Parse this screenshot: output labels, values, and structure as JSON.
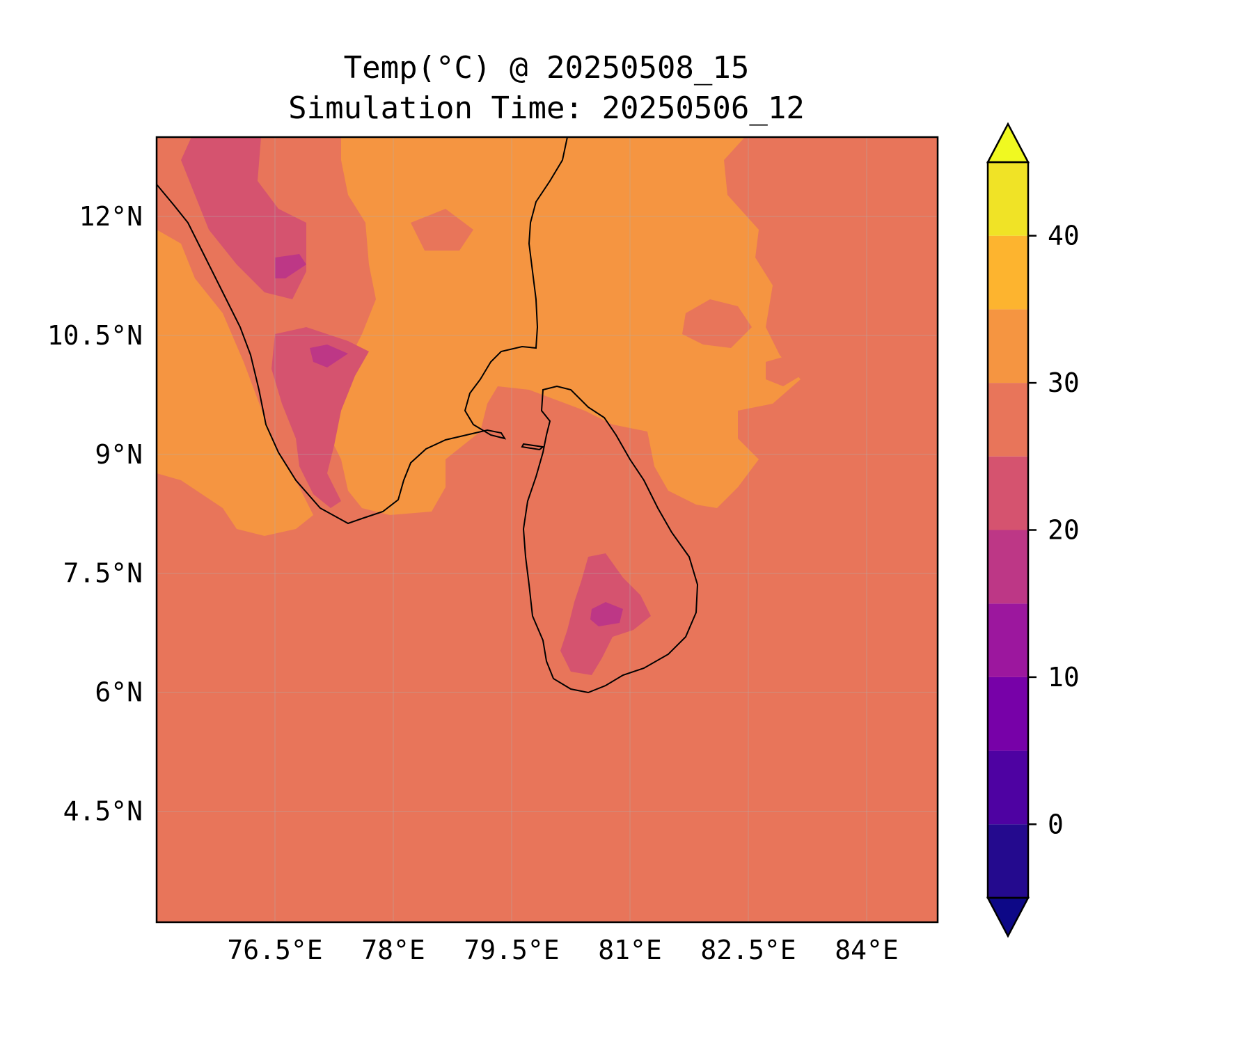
{
  "title": {
    "line1": "Temp(°C) @ 20250508_15",
    "line2": "Simulation Time: 20250506_12"
  },
  "map": {
    "lon_range": [
      75.0,
      84.9
    ],
    "lat_range": [
      3.1,
      13.0
    ],
    "lon_ticks": [
      {
        "value": 76.5,
        "label": "76.5°E"
      },
      {
        "value": 78.0,
        "label": "78°E"
      },
      {
        "value": 79.5,
        "label": "79.5°E"
      },
      {
        "value": 81.0,
        "label": "81°E"
      },
      {
        "value": 82.5,
        "label": "82.5°E"
      },
      {
        "value": 84.0,
        "label": "84°E"
      }
    ],
    "lat_ticks": [
      {
        "value": 12.0,
        "label": "12°N"
      },
      {
        "value": 10.5,
        "label": "10.5°N"
      },
      {
        "value": 9.0,
        "label": "9°N"
      },
      {
        "value": 7.5,
        "label": "7.5°N"
      },
      {
        "value": 6.0,
        "label": "6°N"
      },
      {
        "value": 4.5,
        "label": "4.5°N"
      }
    ],
    "gridlines": true,
    "background_level_color": "#e8755a"
  },
  "colorbar": {
    "min": -5,
    "max": 45,
    "extend": "both",
    "ticks": [
      {
        "value": 0,
        "label": "0"
      },
      {
        "value": 10,
        "label": "10"
      },
      {
        "value": 20,
        "label": "20"
      },
      {
        "value": 30,
        "label": "30"
      },
      {
        "value": 40,
        "label": "40"
      }
    ],
    "levels": [
      {
        "from": -5,
        "to": 0,
        "color": "#240a8e"
      },
      {
        "from": 0,
        "to": 5,
        "color": "#4e02a2"
      },
      {
        "from": 5,
        "to": 10,
        "color": "#7701a8"
      },
      {
        "from": 10,
        "to": 15,
        "color": "#9c179e"
      },
      {
        "from": 15,
        "to": 20,
        "color": "#bd3786"
      },
      {
        "from": 20,
        "to": 25,
        "color": "#d5536f"
      },
      {
        "from": 25,
        "to": 30,
        "color": "#e8755a"
      },
      {
        "from": 30,
        "to": 35,
        "color": "#f59541"
      },
      {
        "from": 35,
        "to": 40,
        "color": "#fdb42f"
      },
      {
        "from": 40,
        "to": 45,
        "color": "#f0e326"
      }
    ],
    "under_color": "#0d0887",
    "over_color": "#f0f921"
  }
}
